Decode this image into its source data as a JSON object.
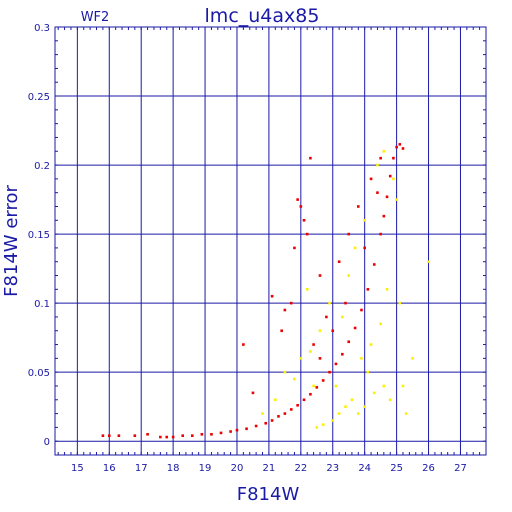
{
  "chart_data": {
    "type": "scatter",
    "title": "lmc_u4ax85",
    "panel_label": "WF2",
    "xlabel": "F814W",
    "ylabel": "F814W error",
    "xlim": [
      14.3,
      27.8
    ],
    "ylim": [
      -0.01,
      0.3
    ],
    "x_ticks": [
      15,
      16,
      17,
      18,
      19,
      20,
      21,
      22,
      23,
      24,
      25,
      26,
      27
    ],
    "y_ticks": [
      0,
      0.05,
      0.1,
      0.15,
      0.2,
      0.25,
      0.3
    ],
    "grid": true,
    "colors": {
      "axis": "#1a1aa6",
      "grid": "#1a1aa6",
      "red": "#ee0000",
      "yellow": "#ffee00"
    },
    "series": [
      {
        "color": "red",
        "points": [
          [
            15.8,
            0.004
          ],
          [
            16.0,
            0.004
          ],
          [
            16.3,
            0.004
          ],
          [
            16.8,
            0.004
          ],
          [
            17.2,
            0.005
          ],
          [
            17.6,
            0.003
          ],
          [
            17.8,
            0.003
          ],
          [
            18.0,
            0.003
          ],
          [
            18.3,
            0.004
          ],
          [
            18.6,
            0.004
          ],
          [
            18.9,
            0.005
          ],
          [
            19.2,
            0.005
          ],
          [
            19.5,
            0.006
          ],
          [
            19.8,
            0.007
          ],
          [
            20.0,
            0.008
          ],
          [
            20.3,
            0.009
          ],
          [
            20.6,
            0.011
          ],
          [
            20.9,
            0.013
          ],
          [
            21.1,
            0.015
          ],
          [
            21.3,
            0.018
          ],
          [
            21.5,
            0.02
          ],
          [
            21.7,
            0.023
          ],
          [
            21.9,
            0.026
          ],
          [
            22.1,
            0.03
          ],
          [
            22.3,
            0.034
          ],
          [
            22.5,
            0.039
          ],
          [
            22.7,
            0.044
          ],
          [
            22.9,
            0.05
          ],
          [
            23.1,
            0.056
          ],
          [
            23.3,
            0.063
          ],
          [
            23.5,
            0.072
          ],
          [
            23.7,
            0.082
          ],
          [
            23.9,
            0.095
          ],
          [
            24.1,
            0.11
          ],
          [
            24.3,
            0.128
          ],
          [
            24.5,
            0.15
          ],
          [
            24.6,
            0.163
          ],
          [
            24.7,
            0.177
          ],
          [
            24.8,
            0.192
          ],
          [
            24.9,
            0.205
          ],
          [
            25.0,
            0.213
          ],
          [
            25.1,
            0.215
          ],
          [
            25.2,
            0.212
          ],
          [
            22.0,
            0.17
          ],
          [
            22.1,
            0.16
          ],
          [
            22.2,
            0.15
          ],
          [
            21.9,
            0.175
          ],
          [
            22.3,
            0.205
          ],
          [
            21.8,
            0.14
          ],
          [
            21.5,
            0.095
          ],
          [
            21.4,
            0.08
          ],
          [
            21.7,
            0.1
          ],
          [
            22.4,
            0.07
          ],
          [
            22.6,
            0.12
          ],
          [
            22.8,
            0.09
          ],
          [
            21.1,
            0.105
          ],
          [
            20.2,
            0.07
          ],
          [
            20.5,
            0.035
          ],
          [
            23.2,
            0.13
          ],
          [
            23.5,
            0.15
          ],
          [
            23.8,
            0.17
          ],
          [
            24.2,
            0.19
          ],
          [
            24.5,
            0.205
          ],
          [
            24.4,
            0.18
          ],
          [
            24.0,
            0.14
          ],
          [
            23.4,
            0.1
          ],
          [
            23.0,
            0.08
          ],
          [
            22.6,
            0.06
          ]
        ]
      },
      {
        "color": "yellow",
        "points": [
          [
            21.5,
            0.05
          ],
          [
            21.8,
            0.045
          ],
          [
            22.0,
            0.06
          ],
          [
            22.3,
            0.065
          ],
          [
            22.5,
            0.01
          ],
          [
            22.7,
            0.012
          ],
          [
            23.0,
            0.015
          ],
          [
            23.2,
            0.02
          ],
          [
            23.4,
            0.025
          ],
          [
            23.6,
            0.03
          ],
          [
            23.8,
            0.02
          ],
          [
            24.0,
            0.025
          ],
          [
            24.3,
            0.035
          ],
          [
            24.6,
            0.04
          ],
          [
            24.8,
            0.03
          ],
          [
            25.2,
            0.04
          ],
          [
            25.5,
            0.06
          ],
          [
            26.0,
            0.13
          ],
          [
            25.1,
            0.1
          ],
          [
            24.7,
            0.11
          ],
          [
            24.5,
            0.085
          ],
          [
            24.2,
            0.07
          ],
          [
            23.9,
            0.06
          ],
          [
            23.5,
            0.12
          ],
          [
            23.3,
            0.09
          ],
          [
            22.9,
            0.1
          ],
          [
            22.6,
            0.08
          ],
          [
            22.2,
            0.11
          ],
          [
            23.7,
            0.14
          ],
          [
            24.0,
            0.16
          ],
          [
            24.4,
            0.2
          ],
          [
            24.9,
            0.19
          ],
          [
            25.0,
            0.175
          ],
          [
            24.6,
            0.21
          ],
          [
            22.4,
            0.04
          ],
          [
            21.2,
            0.03
          ],
          [
            20.8,
            0.02
          ],
          [
            23.1,
            0.04
          ],
          [
            25.3,
            0.02
          ],
          [
            24.1,
            0.05
          ]
        ]
      }
    ]
  }
}
